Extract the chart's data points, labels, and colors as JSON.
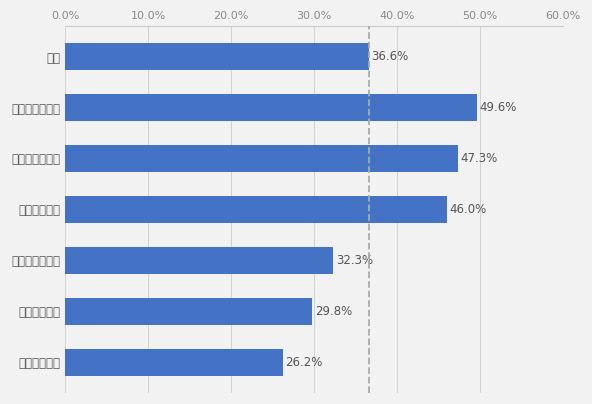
{
  "categories": [
    "なんとなく層",
    "コスパ重視層",
    "地域密着重視層",
    "信頼性重視層",
    "サービス重視層",
    "環境配慮重視層",
    "全体"
  ],
  "values": [
    26.2,
    29.8,
    32.3,
    46.0,
    47.3,
    49.6,
    36.6
  ],
  "bar_color": "#4472C4",
  "background_color": "#f2f2f2",
  "xlim": [
    0,
    60
  ],
  "xtick_labels": [
    "0.0%",
    "10.0%",
    "20.0%",
    "30.0%",
    "40.0%",
    "50.0%",
    "60.0%"
  ],
  "xtick_values": [
    0,
    10,
    20,
    30,
    40,
    50,
    60
  ],
  "dashed_line_x": 36.6,
  "label_fontsize": 8.5,
  "tick_fontsize": 8,
  "bar_height": 0.52,
  "value_label_fontsize": 8.5
}
